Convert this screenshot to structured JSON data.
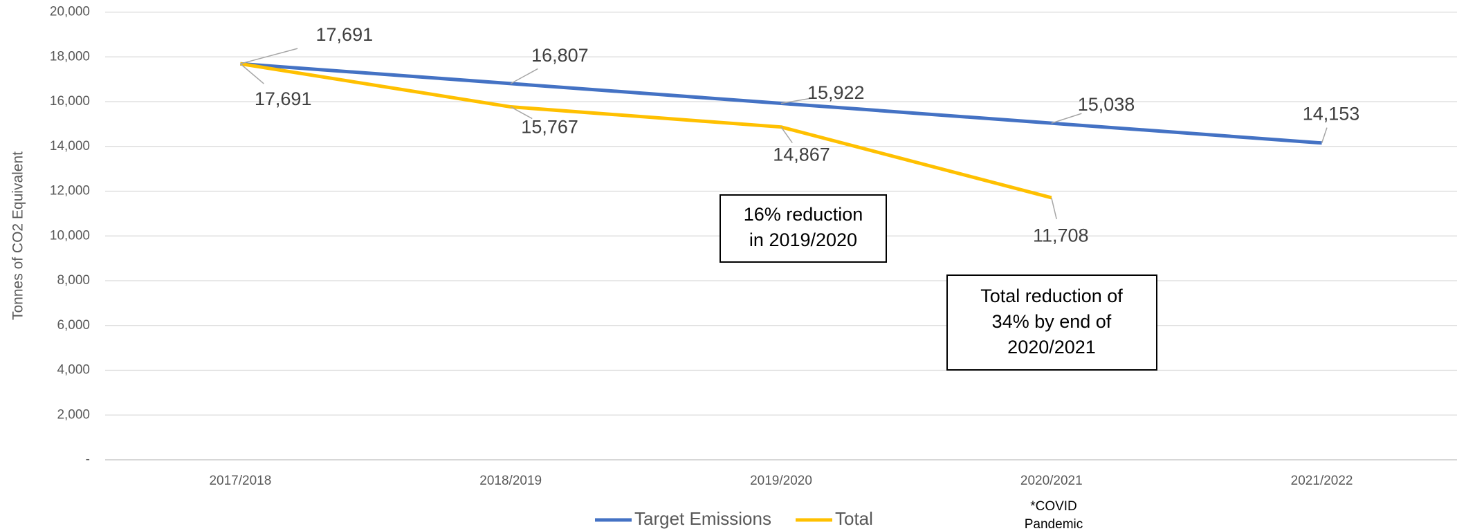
{
  "chart_data": {
    "type": "line",
    "y_label": "Tonnes of CO2 Equivalent",
    "categories": [
      "2017/2018",
      "2018/2019",
      "2019/2020",
      "2020/2021",
      "2021/2022"
    ],
    "series": [
      {
        "name": "Target Emissions",
        "color": "#4472c4",
        "values": [
          17691,
          16807,
          15922,
          15038,
          14153
        ],
        "value_labels": [
          "17,691",
          "16,807",
          "15,922",
          "15,038",
          "14,153"
        ]
      },
      {
        "name": "Total",
        "color": "#ffc000",
        "values": [
          17691,
          15767,
          14867,
          11708,
          null
        ],
        "value_labels": [
          "17,691",
          "15,767",
          "14,867",
          "11,708",
          null
        ]
      }
    ],
    "ylim": [
      0,
      20000
    ],
    "yticks": [
      {
        "value": 0,
        "label": "-"
      },
      {
        "value": 2000,
        "label": "2,000"
      },
      {
        "value": 4000,
        "label": "4,000"
      },
      {
        "value": 6000,
        "label": "6,000"
      },
      {
        "value": 8000,
        "label": "8,000"
      },
      {
        "value": 10000,
        "label": "10,000"
      },
      {
        "value": 12000,
        "label": "12,000"
      },
      {
        "value": 14000,
        "label": "14,000"
      },
      {
        "value": 16000,
        "label": "16,000"
      },
      {
        "value": 18000,
        "label": "18,000"
      },
      {
        "value": 20000,
        "label": "20,000"
      }
    ],
    "grid": true,
    "legend": "bottom",
    "annotations": [
      {
        "lines": [
          "16% reduction",
          "in 2019/2020"
        ]
      },
      {
        "lines": [
          "Total reduction of",
          "34% by end of",
          "2020/2021"
        ]
      },
      {
        "lines": [
          "*COVID",
          "Pandemic"
        ]
      }
    ]
  }
}
